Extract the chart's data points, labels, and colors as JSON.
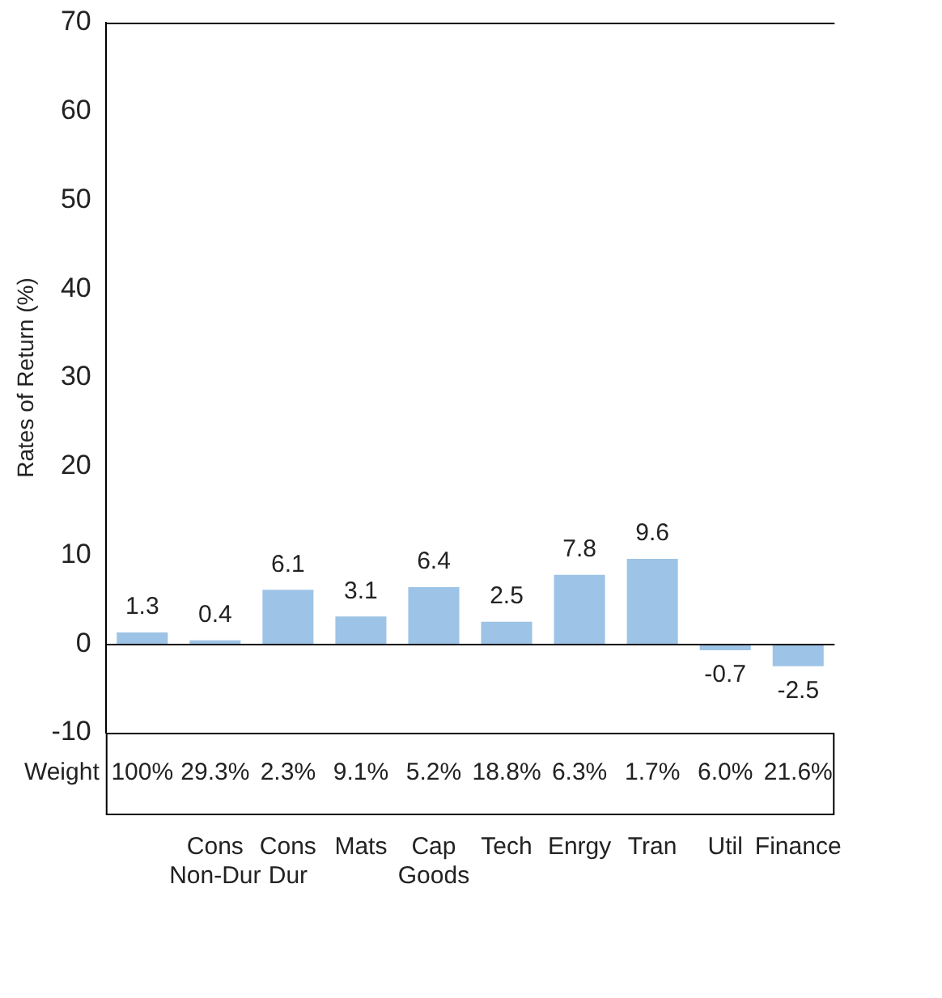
{
  "chart_data": {
    "type": "bar",
    "ylabel": "Rates of Return (%)",
    "categories": [
      null,
      "Cons Non-Dur",
      "Cons Dur",
      "Mats",
      "Cap Goods",
      "Tech",
      "Enrgy",
      "Tran",
      "Util",
      "Finance"
    ],
    "values": [
      1.3,
      0.4,
      6.1,
      3.1,
      6.4,
      2.5,
      7.8,
      9.6,
      -0.7,
      -2.5
    ],
    "color": "#9dc3e6",
    "data_labels": true,
    "ylim": [
      -10,
      70
    ],
    "yticks": [
      -10,
      0,
      10,
      20,
      30,
      40,
      50,
      60,
      70
    ],
    "annotations": [
      "Weight",
      "100%",
      "29.3%",
      "2.3%",
      "9.1%",
      "5.2%",
      "18.8%",
      "6.3%",
      "1.7%",
      "6.0%",
      "21.6%"
    ]
  }
}
